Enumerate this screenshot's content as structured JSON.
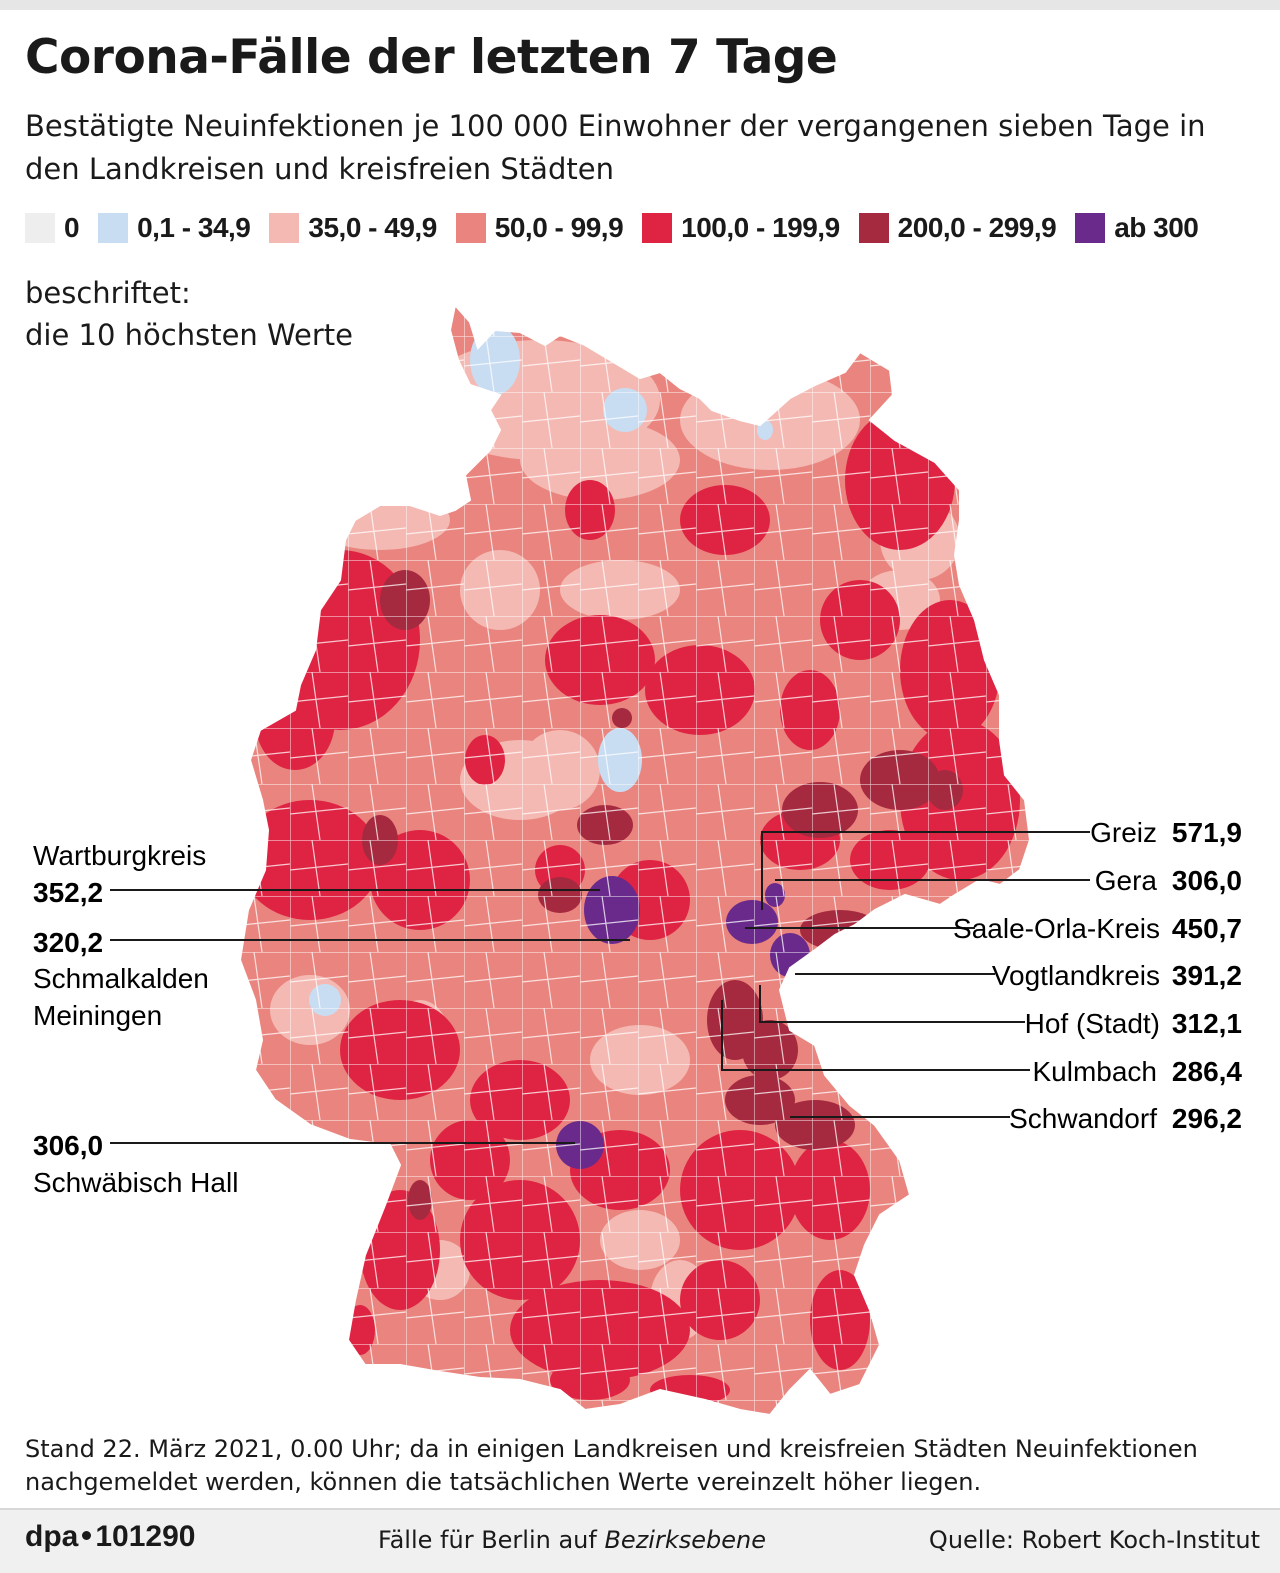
{
  "header": {
    "title": "Corona-Fälle der letzten 7 Tage",
    "subtitle": "Bestätigte Neuinfektionen je 100 000 Einwohner der vergangenen sieben Tage in den Landkreisen und kreisfreien Städten"
  },
  "legend": [
    {
      "label": "0",
      "color": "#eeeeee"
    },
    {
      "label": "0,1 - 34,9",
      "color": "#c9ddf2"
    },
    {
      "label": "35,0 - 49,9",
      "color": "#f4b9b3"
    },
    {
      "label": "50,0 - 99,9",
      "color": "#e9857e"
    },
    {
      "label": "100,0 - 199,9",
      "color": "#df2443"
    },
    {
      "label": "200,0 - 299,9",
      "color": "#a52a3f"
    },
    {
      "label": "ab 300",
      "color": "#6a2a8c"
    }
  ],
  "labeled_note": {
    "line1": "beschriftet:",
    "line2": "die 10 höchsten Werte"
  },
  "callouts_left": [
    {
      "name": "Wartburgkreis",
      "value": "352,2"
    },
    {
      "value": "320,2",
      "name_line1": "Schmalkalden",
      "name_line2": "Meiningen"
    },
    {
      "value": "306,0",
      "name": "Schwäbisch Hall"
    }
  ],
  "callouts_right": [
    {
      "name": "Greiz",
      "value": "571,9"
    },
    {
      "name": "Gera",
      "value": "306,0"
    },
    {
      "name": "Saale-Orla-Kreis",
      "value": "450,7"
    },
    {
      "name": "Vogtlandkreis",
      "value": "391,2"
    },
    {
      "name": "Hof (Stadt)",
      "value": "312,1"
    },
    {
      "name": "Kulmbach",
      "value": "286,4"
    },
    {
      "name": "Schwandorf",
      "value": "296,2"
    }
  ],
  "footnote": "Stand 22. März 2021, 0.00 Uhr; da in einigen Landkreisen und kreisfreien Städten Neuinfektionen nachgemeldet werden, können die tatsächlichen Werte vereinzelt höher liegen.",
  "footer": {
    "agency": "dpa",
    "graphic_id": "101290",
    "berlin_note_prefix": "Fälle für Berlin auf ",
    "berlin_note_italic": "Bezirksebene",
    "source": "Quelle: Robert Koch-Institut"
  }
}
